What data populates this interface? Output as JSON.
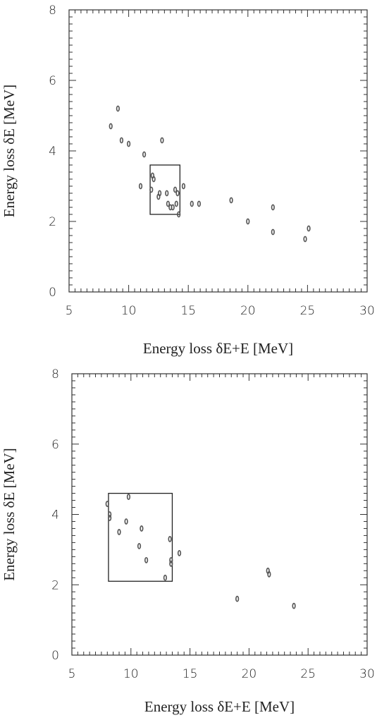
{
  "chart_data": [
    {
      "type": "scatter",
      "xlabel": "Energy loss δE+E [MeV]",
      "ylabel": "Energy loss δE [MeV]",
      "xlim": [
        5,
        30
      ],
      "ylim": [
        0,
        8
      ],
      "xticks": [
        "5",
        "10",
        "15",
        "20",
        "25",
        "30"
      ],
      "yticks": [
        "0",
        "2",
        "4",
        "6",
        "8"
      ],
      "grid": false,
      "marker_color": "#555555",
      "points": [
        {
          "x": 8.5,
          "y": 4.7
        },
        {
          "x": 9.1,
          "y": 5.2
        },
        {
          "x": 9.4,
          "y": 4.3
        },
        {
          "x": 10.0,
          "y": 4.2
        },
        {
          "x": 11.0,
          "y": 3.0
        },
        {
          "x": 11.3,
          "y": 3.9
        },
        {
          "x": 11.9,
          "y": 2.9
        },
        {
          "x": 12.0,
          "y": 3.3
        },
        {
          "x": 12.1,
          "y": 3.2
        },
        {
          "x": 12.5,
          "y": 2.7
        },
        {
          "x": 12.6,
          "y": 2.8
        },
        {
          "x": 12.8,
          "y": 4.3
        },
        {
          "x": 13.2,
          "y": 2.8
        },
        {
          "x": 13.3,
          "y": 2.5
        },
        {
          "x": 13.5,
          "y": 2.4
        },
        {
          "x": 13.7,
          "y": 2.4
        },
        {
          "x": 13.9,
          "y": 2.9
        },
        {
          "x": 14.0,
          "y": 2.5
        },
        {
          "x": 14.1,
          "y": 2.8
        },
        {
          "x": 14.2,
          "y": 2.2
        },
        {
          "x": 14.6,
          "y": 3.0
        },
        {
          "x": 15.3,
          "y": 2.5
        },
        {
          "x": 15.9,
          "y": 2.5
        },
        {
          "x": 18.6,
          "y": 2.6
        },
        {
          "x": 20.0,
          "y": 2.0
        },
        {
          "x": 22.1,
          "y": 2.4
        },
        {
          "x": 22.1,
          "y": 1.7
        },
        {
          "x": 24.8,
          "y": 1.5
        },
        {
          "x": 25.1,
          "y": 1.8
        }
      ],
      "box": {
        "x0": 11.8,
        "x1": 14.3,
        "y0": 2.2,
        "y1": 3.6
      }
    },
    {
      "type": "scatter",
      "xlabel": "Energy loss δE+E [MeV]",
      "ylabel": "Energy loss δE [MeV]",
      "xlim": [
        5,
        30
      ],
      "ylim": [
        0,
        8
      ],
      "xticks": [
        "5",
        "10",
        "15",
        "20",
        "25",
        "30"
      ],
      "yticks": [
        "0",
        "2",
        "4",
        "6",
        "8"
      ],
      "grid": false,
      "marker_color": "#555555",
      "points": [
        {
          "x": 8.0,
          "y": 4.3
        },
        {
          "x": 8.2,
          "y": 4.0
        },
        {
          "x": 8.2,
          "y": 3.9
        },
        {
          "x": 9.0,
          "y": 3.5
        },
        {
          "x": 9.6,
          "y": 3.8
        },
        {
          "x": 9.8,
          "y": 4.5
        },
        {
          "x": 10.7,
          "y": 3.1
        },
        {
          "x": 10.9,
          "y": 3.6
        },
        {
          "x": 11.3,
          "y": 2.7
        },
        {
          "x": 12.9,
          "y": 2.2
        },
        {
          "x": 13.3,
          "y": 3.3
        },
        {
          "x": 13.4,
          "y": 2.7
        },
        {
          "x": 13.4,
          "y": 2.6
        },
        {
          "x": 14.1,
          "y": 2.9
        },
        {
          "x": 19.0,
          "y": 1.6
        },
        {
          "x": 21.6,
          "y": 2.4
        },
        {
          "x": 21.7,
          "y": 2.3
        },
        {
          "x": 23.8,
          "y": 1.4
        }
      ],
      "box": {
        "x0": 8.1,
        "x1": 13.5,
        "y0": 2.1,
        "y1": 4.6
      }
    }
  ]
}
